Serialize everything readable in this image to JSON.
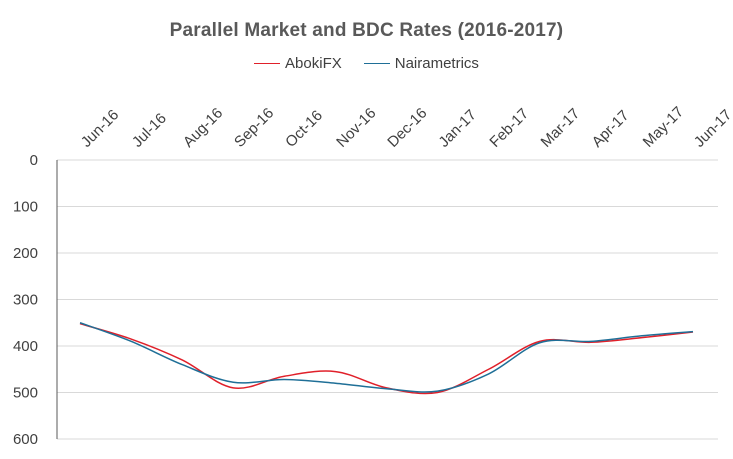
{
  "chart_data": {
    "type": "line",
    "title": "Parallel Market and BDC Rates (2016-2017)",
    "categories": [
      "Jun-16",
      "Jul-16",
      "Aug-16",
      "Sep-16",
      "Oct-16",
      "Nov-16",
      "Dec-16",
      "Jan-17",
      "Feb-17",
      "Mar-17",
      "Apr-17",
      "May-17",
      "Jun-17"
    ],
    "x": [
      "Jun-16",
      "Jul-16",
      "Aug-16",
      "Sep-16",
      "Oct-16",
      "Nov-16",
      "Dec-16",
      "Jan-17",
      "Feb-17",
      "Mar-17",
      "Apr-17",
      "May-17",
      "Jun-17"
    ],
    "ylim": [
      0,
      600
    ],
    "y_ticks": [
      0,
      100,
      200,
      300,
      400,
      500,
      600
    ],
    "y_axis_reversed": true,
    "x_axis_position": "top",
    "grid": true,
    "legend_position": "top",
    "series": [
      {
        "name": "AbokiFX",
        "color": "#e0202a",
        "values": [
          352,
          385,
          430,
          490,
          465,
          455,
          490,
          500,
          450,
          390,
          392,
          382,
          370
        ]
      },
      {
        "name": "Nairametrics",
        "color": "#1f6f97",
        "values": [
          350,
          390,
          440,
          478,
          472,
          480,
          492,
          497,
          460,
          393,
          390,
          378,
          369
        ]
      }
    ]
  }
}
